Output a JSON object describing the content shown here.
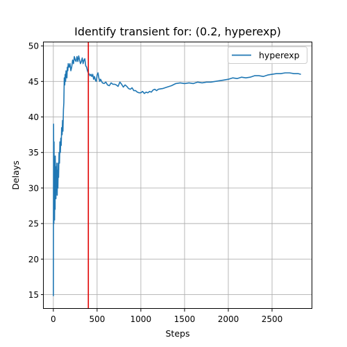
{
  "chart_data": {
    "type": "line",
    "title": "Identify transient for: (0.2, hyperexp)",
    "xlabel": "Steps",
    "ylabel": "Delays",
    "xlim": [
      -110,
      2960
    ],
    "ylim": [
      13,
      50.5
    ],
    "xticks": [
      0,
      500,
      1000,
      1500,
      2000,
      2500
    ],
    "yticks": [
      15,
      20,
      25,
      30,
      35,
      40,
      45,
      50
    ],
    "grid": true,
    "legend_position": "top-right",
    "series_color": "#1f77b4",
    "marker_color": "#e00000",
    "series": [
      {
        "name": "hyperexp",
        "x": [
          0,
          3,
          6,
          8,
          10,
          12,
          14,
          16,
          18,
          20,
          22,
          25,
          28,
          30,
          33,
          36,
          40,
          44,
          48,
          52,
          56,
          60,
          65,
          70,
          75,
          80,
          85,
          90,
          95,
          100,
          105,
          110,
          115,
          120,
          125,
          130,
          135,
          140,
          145,
          150,
          155,
          160,
          165,
          170,
          180,
          190,
          200,
          210,
          220,
          230,
          240,
          250,
          260,
          270,
          280,
          290,
          300,
          310,
          320,
          330,
          340,
          350,
          360,
          370,
          380,
          390,
          400,
          410,
          420,
          430,
          440,
          450,
          460,
          470,
          480,
          490,
          500,
          510,
          520,
          530,
          540,
          560,
          580,
          600,
          620,
          640,
          660,
          680,
          700,
          720,
          740,
          760,
          780,
          800,
          820,
          840,
          860,
          880,
          900,
          920,
          940,
          960,
          980,
          1000,
          1020,
          1040,
          1060,
          1080,
          1100,
          1120,
          1140,
          1160,
          1180,
          1200,
          1250,
          1300,
          1350,
          1400,
          1450,
          1500,
          1550,
          1600,
          1650,
          1700,
          1750,
          1800,
          1850,
          1900,
          1950,
          2000,
          2050,
          2100,
          2150,
          2200,
          2250,
          2300,
          2350,
          2400,
          2450,
          2500,
          2550,
          2600,
          2650,
          2700,
          2750,
          2800,
          2830
        ],
        "y": [
          14.8,
          39.0,
          25.0,
          36.5,
          28.5,
          33.0,
          25.5,
          34.0,
          30.0,
          27.0,
          34.5,
          30.5,
          33.0,
          28.5,
          32.0,
          30.0,
          33.5,
          29.0,
          32.5,
          30.0,
          33.5,
          31.5,
          35.0,
          33.5,
          36.5,
          35.0,
          37.0,
          36.0,
          38.5,
          37.5,
          39.5,
          38.0,
          41.0,
          42.0,
          45.5,
          44.5,
          46.0,
          45.0,
          46.5,
          46.0,
          45.5,
          47.0,
          46.5,
          47.5,
          47.0,
          47.5,
          46.5,
          47.0,
          48.0,
          47.5,
          48.5,
          48.0,
          47.8,
          48.5,
          47.8,
          48.6,
          48.0,
          47.5,
          47.8,
          48.3,
          47.5,
          48.0,
          48.2,
          47.2,
          47.0,
          46.5,
          46.2,
          46.0,
          45.8,
          46.0,
          45.7,
          46.0,
          45.3,
          45.7,
          45.2,
          45.0,
          45.9,
          46.2,
          45.5,
          45.0,
          45.3,
          44.8,
          44.7,
          44.9,
          44.5,
          44.4,
          44.8,
          44.6,
          44.6,
          44.5,
          44.3,
          44.9,
          44.6,
          44.2,
          44.5,
          44.3,
          44.0,
          43.9,
          44.1,
          43.7,
          43.7,
          43.5,
          43.4,
          43.4,
          43.6,
          43.3,
          43.5,
          43.4,
          43.6,
          43.5,
          43.8,
          43.9,
          43.7,
          43.9,
          44.0,
          44.2,
          44.4,
          44.7,
          44.8,
          44.7,
          44.8,
          44.7,
          44.9,
          44.8,
          44.9,
          44.9,
          45.0,
          45.1,
          45.2,
          45.3,
          45.5,
          45.4,
          45.6,
          45.5,
          45.6,
          45.8,
          45.8,
          45.7,
          45.9,
          46.0,
          46.1,
          46.1,
          46.2,
          46.2,
          46.1,
          46.1,
          46.0
        ]
      }
    ],
    "markers": [
      {
        "type": "vline",
        "x": 400
      }
    ]
  }
}
